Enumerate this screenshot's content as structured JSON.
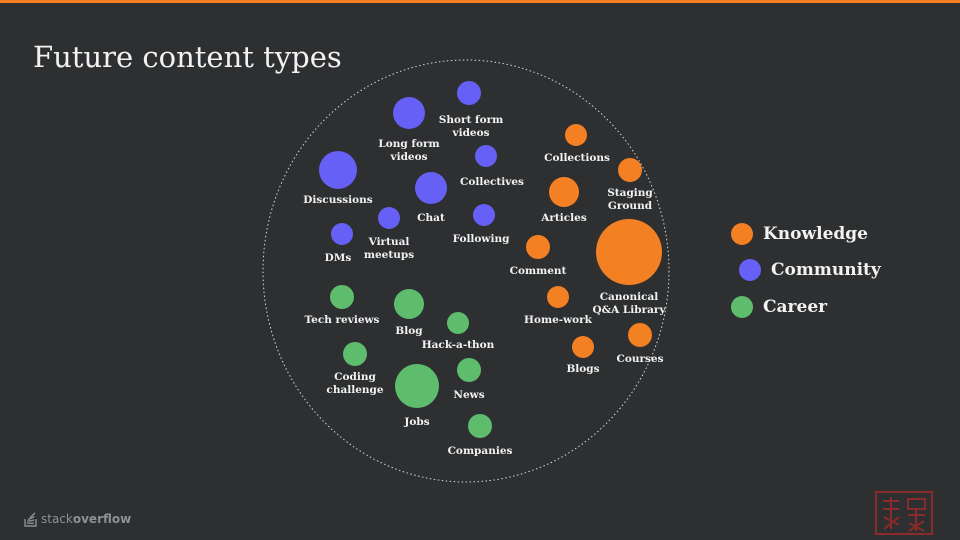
{
  "title": "Future content types",
  "colors": {
    "background": "#2d2f31",
    "accent_bar": "#f48024",
    "knowledge": "#f48024",
    "community": "#6660f6",
    "career": "#5ebd6d",
    "text": "#f2f2f2",
    "outline": "#d8d8d8"
  },
  "legend": [
    {
      "label": "Knowledge",
      "color": "#f48024"
    },
    {
      "label": "Community",
      "color": "#6660f6"
    },
    {
      "label": "Career",
      "color": "#5ebd6d"
    }
  ],
  "nodes": [
    {
      "label": "Short form\nvideos",
      "group": "community"
    },
    {
      "label": "Long form\nvideos",
      "group": "community"
    },
    {
      "label": "Discussions",
      "group": "community"
    },
    {
      "label": "Collectives",
      "group": "community"
    },
    {
      "label": "Chat",
      "group": "community"
    },
    {
      "label": "Virtual\nmeetups",
      "group": "community"
    },
    {
      "label": "Following",
      "group": "community"
    },
    {
      "label": "DMs",
      "group": "community"
    },
    {
      "label": "Collections",
      "group": "knowledge"
    },
    {
      "label": "Staging\nGround",
      "group": "knowledge"
    },
    {
      "label": "Articles",
      "group": "knowledge"
    },
    {
      "label": "Comment",
      "group": "knowledge"
    },
    {
      "label": "Canonical\nQ&A Library",
      "group": "knowledge"
    },
    {
      "label": "Home-work",
      "group": "knowledge"
    },
    {
      "label": "Courses",
      "group": "knowledge"
    },
    {
      "label": "Blogs",
      "group": "knowledge"
    },
    {
      "label": "Tech reviews",
      "group": "career"
    },
    {
      "label": "Blog",
      "group": "career"
    },
    {
      "label": "Hack-a-thon",
      "group": "career"
    },
    {
      "label": "Coding\nchallenge",
      "group": "career"
    },
    {
      "label": "Jobs",
      "group": "career"
    },
    {
      "label": "News",
      "group": "career"
    },
    {
      "label": "Companies",
      "group": "career"
    }
  ],
  "brand": {
    "logo_prefix": "stack",
    "logo_suffix": "overflow",
    "logo_icon": "stack-overflow-logo-icon"
  }
}
